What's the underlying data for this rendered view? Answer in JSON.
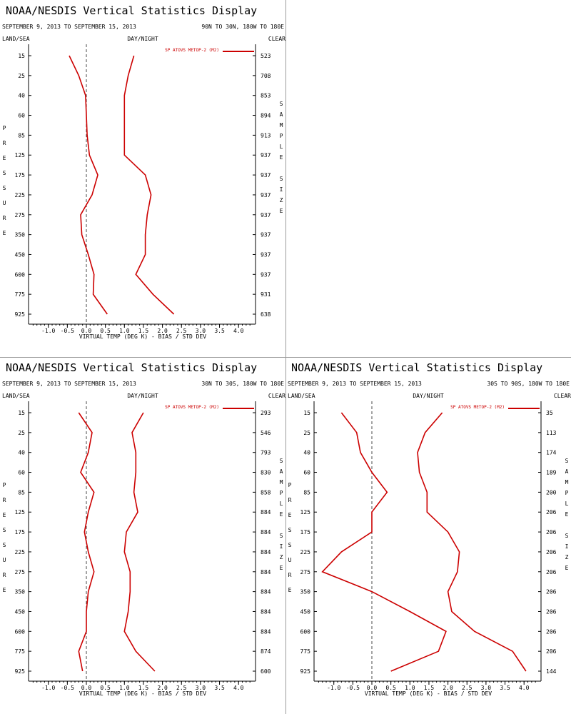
{
  "panels": [
    {
      "title": "NOAA/NESDIS Vertical Statistics Display",
      "date_range": "SEPTEMBER 9, 2013 TO SEPTEMBER 15, 2013",
      "region": "90N TO 30N, 180W TO 180E",
      "left_header": "LAND/SEA",
      "center_header": "DAY/NIGHT",
      "right_header": "CLEAR",
      "legend": "SP ATOVS METOP-2 (M2)",
      "y_side_label": "PRESSURE",
      "right_side_label": "SAMPLE SIZE",
      "xlabel": "VIRTUAL TEMP (DEG K) - BIAS / STD DEV",
      "chart_data": {
        "type": "line",
        "pressure_levels": [
          "15",
          "25",
          "40",
          "60",
          "85",
          "125",
          "175",
          "225",
          "275",
          "350",
          "450",
          "600",
          "775",
          "925"
        ],
        "sample_sizes": [
          "523",
          "708",
          "853",
          "894",
          "913",
          "937",
          "937",
          "937",
          "937",
          "937",
          "937",
          "937",
          "931",
          "638"
        ],
        "bias": [
          -0.45,
          -0.2,
          -0.02,
          0.0,
          0.02,
          0.08,
          0.3,
          0.15,
          -0.15,
          -0.12,
          0.05,
          0.2,
          0.18,
          0.55
        ],
        "std_dev": [
          1.25,
          1.1,
          1.0,
          1.0,
          1.0,
          1.0,
          1.55,
          1.7,
          1.6,
          1.55,
          1.55,
          1.3,
          1.75,
          2.3
        ],
        "x_ticks": [
          "-1.0",
          "-0.5",
          "0.0",
          "0.5",
          "1.0",
          "1.5",
          "2.0",
          "2.5",
          "3.0",
          "3.5",
          "4.0"
        ],
        "xlim": [
          -1.0,
          4.0
        ]
      }
    },
    {
      "title": "NOAA/NESDIS Vertical Statistics Display",
      "date_range": "SEPTEMBER 9, 2013 TO SEPTEMBER 15, 2013",
      "region": "30N TO 30S, 180W TO 180E",
      "left_header": "LAND/SEA",
      "center_header": "DAY/NIGHT",
      "right_header": "CLEAR",
      "legend": "SP ATOVS METOP-2 (M2)",
      "y_side_label": "PRESSURE",
      "right_side_label": "SAMPLE SIZE",
      "xlabel": "VIRTUAL TEMP (DEG K) - BIAS / STD DEV",
      "chart_data": {
        "type": "line",
        "pressure_levels": [
          "15",
          "25",
          "40",
          "60",
          "85",
          "125",
          "175",
          "225",
          "275",
          "350",
          "450",
          "600",
          "775",
          "925"
        ],
        "sample_sizes": [
          "293",
          "546",
          "793",
          "830",
          "858",
          "884",
          "884",
          "884",
          "884",
          "884",
          "884",
          "884",
          "874",
          "600"
        ],
        "bias": [
          -0.2,
          0.15,
          0.05,
          -0.15,
          0.2,
          0.05,
          -0.05,
          0.05,
          0.2,
          0.05,
          0.0,
          0.0,
          -0.2,
          -0.1
        ],
        "std_dev": [
          1.5,
          1.2,
          1.3,
          1.3,
          1.25,
          1.35,
          1.05,
          1.0,
          1.15,
          1.15,
          1.1,
          1.0,
          1.3,
          1.8
        ],
        "x_ticks": [
          "-1.0",
          "-0.5",
          "0.0",
          "0.5",
          "1.0",
          "1.5",
          "2.0",
          "2.5",
          "3.0",
          "3.5",
          "4.0"
        ],
        "xlim": [
          -1.0,
          4.0
        ]
      }
    },
    {
      "title": "NOAA/NESDIS Vertical Statistics Display",
      "date_range": "SEPTEMBER 9, 2013 TO SEPTEMBER 15, 2013",
      "region": "30S TO 90S, 180W TO 180E",
      "left_header": "LAND/SEA",
      "center_header": "DAY/NIGHT",
      "right_header": "CLEAR",
      "legend": "SP ATOVS METOP-2 (M2)",
      "y_side_label": "PRESSURE",
      "right_side_label": "SAMPLE SIZE",
      "xlabel": "VIRTUAL TEMP (DEG K) - BIAS / STD DEV",
      "chart_data": {
        "type": "line",
        "pressure_levels": [
          "15",
          "25",
          "40",
          "60",
          "85",
          "125",
          "175",
          "225",
          "275",
          "350",
          "450",
          "600",
          "775",
          "925"
        ],
        "sample_sizes": [
          "35",
          "113",
          "174",
          "189",
          "200",
          "206",
          "206",
          "206",
          "206",
          "206",
          "206",
          "206",
          "206",
          "144"
        ],
        "bias": [
          -0.8,
          -0.4,
          -0.3,
          0.0,
          0.4,
          0.0,
          0.0,
          -0.8,
          -1.3,
          0.0,
          1.0,
          1.95,
          1.75,
          0.5
        ],
        "std_dev": [
          1.85,
          1.4,
          1.2,
          1.25,
          1.45,
          1.45,
          2.0,
          2.3,
          2.25,
          2.0,
          2.1,
          2.7,
          3.7,
          4.05
        ],
        "x_ticks": [
          "-1.0",
          "-0.5",
          "0.0",
          "0.5",
          "1.0",
          "1.5",
          "2.0",
          "2.5",
          "3.0",
          "3.5",
          "4.0"
        ],
        "xlim": [
          -1.0,
          4.0
        ]
      }
    }
  ],
  "colors": {
    "series": "#cc0000",
    "axis": "#000000",
    "zero_line": "#4a4a4a",
    "divider": "#9a9a9a"
  }
}
